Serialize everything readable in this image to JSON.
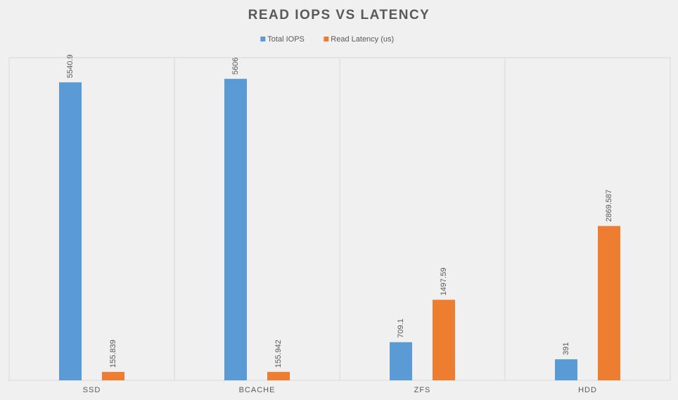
{
  "chart_data": {
    "type": "bar",
    "title": "READ IOPS VS LATENCY",
    "categories": [
      "SSD",
      "BCACHE",
      "ZFS",
      "HDD"
    ],
    "series": [
      {
        "name": "Total IOPS",
        "color": "#5b9bd5",
        "values": [
          5540.9,
          5606,
          709.1,
          391
        ]
      },
      {
        "name": "Read Latency (us)",
        "color": "#ed7d31",
        "values": [
          155.839,
          155.942,
          1497.59,
          2869.587
        ]
      }
    ],
    "ylim": [
      0,
      6000
    ],
    "legend": "top"
  }
}
